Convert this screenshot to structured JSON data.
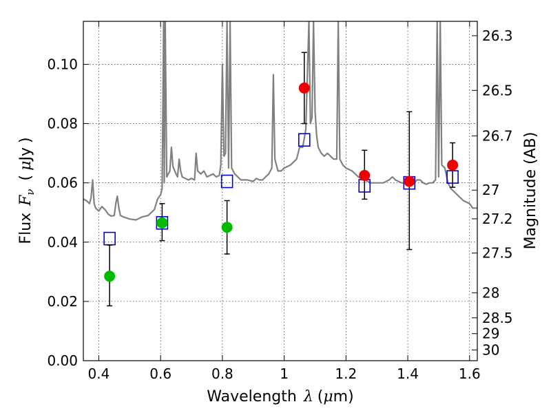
{
  "chart_data": {
    "type": "scatter",
    "xlabel": {
      "prefix": "Wavelength",
      "symbol": "λ",
      "unit_open": "(",
      "unit_mu": "μ",
      "unit_rest": "m)"
    },
    "ylabel": {
      "prefix": "Flux",
      "symbol": "F",
      "subscript": "ν",
      "unit_open": "(",
      "unit_mu": "μ",
      "unit_rest": "Jy",
      "unit_close": ")"
    },
    "y2label": "Magnitude (AB)",
    "xlim": [
      0.35,
      1.625
    ],
    "ylim": [
      0.0,
      0.1145
    ],
    "grid": true,
    "x_ticks": [
      {
        "v": 0.4,
        "label": "0.4"
      },
      {
        "v": 0.6,
        "label": "0.6"
      },
      {
        "v": 0.8,
        "label": "0.8"
      },
      {
        "v": 1.0,
        "label": "1"
      },
      {
        "v": 1.2,
        "label": "1.2"
      },
      {
        "v": 1.4,
        "label": "1.4"
      },
      {
        "v": 1.6,
        "label": "1.6"
      }
    ],
    "y_ticks": [
      {
        "v": 0.0,
        "label": "0.00"
      },
      {
        "v": 0.02,
        "label": "0.02"
      },
      {
        "v": 0.04,
        "label": "0.04"
      },
      {
        "v": 0.06,
        "label": "0.06"
      },
      {
        "v": 0.08,
        "label": "0.08"
      },
      {
        "v": 0.1,
        "label": "0.10"
      }
    ],
    "mag_ticks": [
      {
        "v": 26.3,
        "label": "26.3"
      },
      {
        "v": 26.5,
        "label": "26.5"
      },
      {
        "v": 26.7,
        "label": "26.7"
      },
      {
        "v": 27.0,
        "label": "27"
      },
      {
        "v": 27.2,
        "label": "27.2"
      },
      {
        "v": 27.5,
        "label": "27.5"
      },
      {
        "v": 28.0,
        "label": "28"
      },
      {
        "v": 28.5,
        "label": "28.5"
      },
      {
        "v": 29.0,
        "label": "29"
      },
      {
        "v": 30.0,
        "label": "30"
      }
    ],
    "spectrum": {
      "color": "#808080",
      "points": [
        [
          0.35,
          0.0545
        ],
        [
          0.36,
          0.054
        ],
        [
          0.37,
          0.053
        ],
        [
          0.375,
          0.055
        ],
        [
          0.38,
          0.061
        ],
        [
          0.385,
          0.053
        ],
        [
          0.39,
          0.0515
        ],
        [
          0.4,
          0.0505
        ],
        [
          0.41,
          0.052
        ],
        [
          0.42,
          0.051
        ],
        [
          0.43,
          0.0495
        ],
        [
          0.44,
          0.0488
        ],
        [
          0.45,
          0.049
        ],
        [
          0.455,
          0.053
        ],
        [
          0.46,
          0.0555
        ],
        [
          0.465,
          0.0515
        ],
        [
          0.47,
          0.049
        ],
        [
          0.48,
          0.0485
        ],
        [
          0.5,
          0.0478
        ],
        [
          0.52,
          0.0475
        ],
        [
          0.54,
          0.0485
        ],
        [
          0.56,
          0.049
        ],
        [
          0.57,
          0.05
        ],
        [
          0.58,
          0.051
        ],
        [
          0.59,
          0.0545
        ],
        [
          0.6,
          0.056
        ],
        [
          0.605,
          0.058
        ],
        [
          0.61,
          0.1145
        ],
        [
          0.612,
          0.06
        ],
        [
          0.615,
          0.1145
        ],
        [
          0.62,
          0.062
        ],
        [
          0.63,
          0.064
        ],
        [
          0.635,
          0.072
        ],
        [
          0.64,
          0.0655
        ],
        [
          0.65,
          0.063
        ],
        [
          0.655,
          0.062
        ],
        [
          0.66,
          0.068
        ],
        [
          0.665,
          0.064
        ],
        [
          0.67,
          0.062
        ],
        [
          0.68,
          0.0615
        ],
        [
          0.69,
          0.061
        ],
        [
          0.7,
          0.0615
        ],
        [
          0.71,
          0.061
        ],
        [
          0.715,
          0.07
        ],
        [
          0.72,
          0.064
        ],
        [
          0.73,
          0.063
        ],
        [
          0.74,
          0.064
        ],
        [
          0.75,
          0.062
        ],
        [
          0.76,
          0.0625
        ],
        [
          0.77,
          0.063
        ],
        [
          0.78,
          0.062
        ],
        [
          0.79,
          0.0625
        ],
        [
          0.795,
          0.066
        ],
        [
          0.8,
          0.1
        ],
        [
          0.805,
          0.069
        ],
        [
          0.81,
          0.07
        ],
        [
          0.815,
          0.1145
        ],
        [
          0.82,
          0.065
        ],
        [
          0.825,
          0.1145
        ],
        [
          0.83,
          0.065
        ],
        [
          0.84,
          0.063
        ],
        [
          0.85,
          0.062
        ],
        [
          0.86,
          0.061
        ],
        [
          0.88,
          0.061
        ],
        [
          0.9,
          0.0605
        ],
        [
          0.91,
          0.0615
        ],
        [
          0.92,
          0.061
        ],
        [
          0.93,
          0.061
        ],
        [
          0.94,
          0.062
        ],
        [
          0.95,
          0.063
        ],
        [
          0.96,
          0.065
        ],
        [
          0.965,
          0.0965
        ],
        [
          0.97,
          0.068
        ],
        [
          0.98,
          0.064
        ],
        [
          0.99,
          0.064
        ],
        [
          1.0,
          0.065
        ],
        [
          1.02,
          0.066
        ],
        [
          1.04,
          0.068
        ],
        [
          1.05,
          0.072
        ],
        [
          1.06,
          0.072
        ],
        [
          1.07,
          0.078
        ],
        [
          1.08,
          0.1145
        ],
        [
          1.085,
          0.08
        ],
        [
          1.09,
          0.082
        ],
        [
          1.095,
          0.1145
        ],
        [
          1.1,
          0.084
        ],
        [
          1.105,
          0.076
        ],
        [
          1.11,
          0.072
        ],
        [
          1.12,
          0.07
        ],
        [
          1.13,
          0.069
        ],
        [
          1.14,
          0.07
        ],
        [
          1.15,
          0.069
        ],
        [
          1.16,
          0.068
        ],
        [
          1.17,
          0.068
        ],
        [
          1.175,
          0.1145
        ],
        [
          1.18,
          0.068
        ],
        [
          1.19,
          0.066
        ],
        [
          1.2,
          0.065
        ],
        [
          1.22,
          0.064
        ],
        [
          1.24,
          0.062
        ],
        [
          1.26,
          0.061
        ],
        [
          1.28,
          0.06
        ],
        [
          1.3,
          0.06
        ],
        [
          1.32,
          0.06
        ],
        [
          1.34,
          0.061
        ],
        [
          1.35,
          0.062
        ],
        [
          1.36,
          0.061
        ],
        [
          1.38,
          0.06
        ],
        [
          1.4,
          0.06
        ],
        [
          1.42,
          0.06
        ],
        [
          1.43,
          0.061
        ],
        [
          1.44,
          0.061
        ],
        [
          1.45,
          0.06
        ],
        [
          1.46,
          0.0595
        ],
        [
          1.47,
          0.06
        ],
        [
          1.48,
          0.06
        ],
        [
          1.49,
          0.061
        ],
        [
          1.495,
          0.1145
        ],
        [
          1.5,
          0.062
        ],
        [
          1.505,
          0.1145
        ],
        [
          1.51,
          0.066
        ],
        [
          1.52,
          0.065
        ],
        [
          1.53,
          0.06
        ],
        [
          1.54,
          0.058
        ],
        [
          1.55,
          0.057
        ],
        [
          1.56,
          0.056
        ],
        [
          1.57,
          0.055
        ],
        [
          1.58,
          0.054
        ],
        [
          1.59,
          0.0535
        ],
        [
          1.6,
          0.053
        ],
        [
          1.61,
          0.0515
        ],
        [
          1.625,
          0.0515
        ]
      ]
    },
    "series": [
      {
        "marker": "circle",
        "color": "#00bb00",
        "points": [
          {
            "x": 0.435,
            "y": 0.0285,
            "ylo": 0.0185,
            "yhi": 0.039
          },
          {
            "x": 0.605,
            "y": 0.0465,
            "ylo": 0.0405,
            "yhi": 0.053
          },
          {
            "x": 0.815,
            "y": 0.045,
            "ylo": 0.036,
            "yhi": 0.054
          }
        ]
      },
      {
        "marker": "circle",
        "color": "#ee0000",
        "points": [
          {
            "x": 1.065,
            "y": 0.092,
            "ylo": 0.08,
            "yhi": 0.104
          },
          {
            "x": 1.26,
            "y": 0.0625,
            "ylo": 0.0545,
            "yhi": 0.071
          },
          {
            "x": 1.405,
            "y": 0.0605,
            "ylo": 0.0375,
            "yhi": 0.084
          },
          {
            "x": 1.545,
            "y": 0.066,
            "ylo": 0.0585,
            "yhi": 0.0735
          }
        ]
      },
      {
        "marker": "square",
        "color": "#0000cc",
        "points": [
          {
            "x": 0.435,
            "y": 0.0412
          },
          {
            "x": 0.605,
            "y": 0.0465
          },
          {
            "x": 0.815,
            "y": 0.0605
          },
          {
            "x": 1.065,
            "y": 0.0745
          },
          {
            "x": 1.26,
            "y": 0.059
          },
          {
            "x": 1.405,
            "y": 0.06
          },
          {
            "x": 1.545,
            "y": 0.062
          }
        ]
      }
    ]
  }
}
